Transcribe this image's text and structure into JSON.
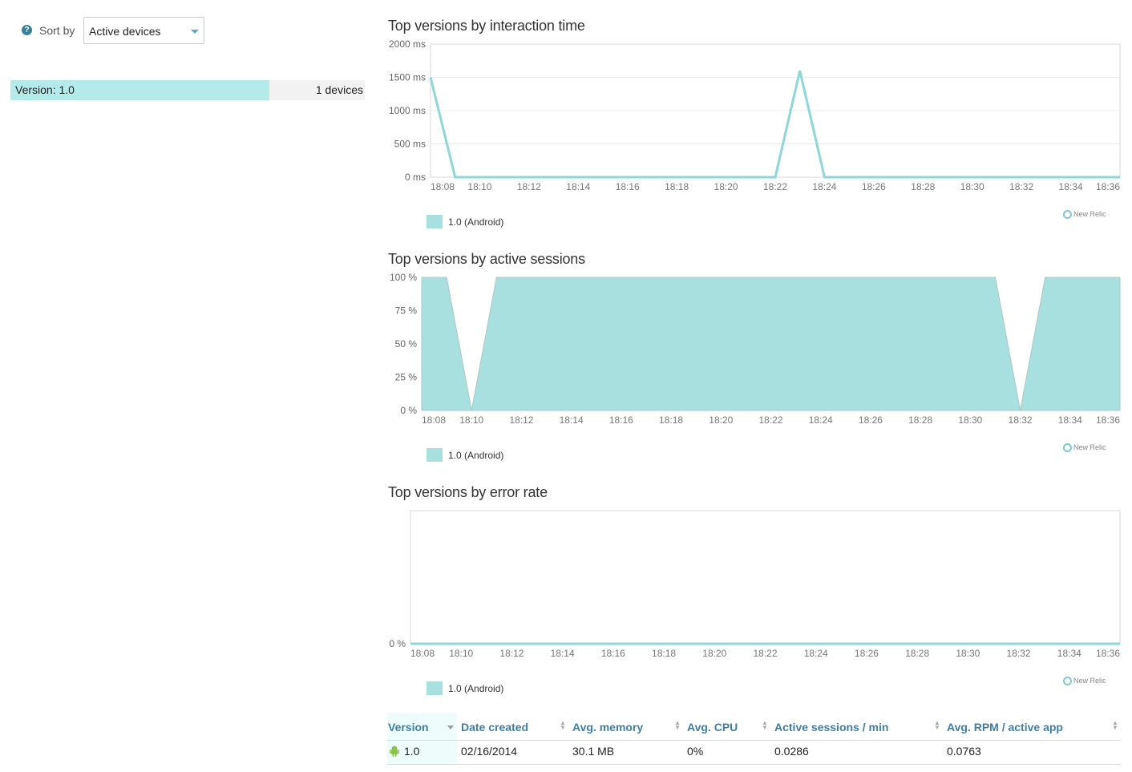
{
  "sidebar": {
    "help_icon": "question-circle-icon",
    "sort_label": "Sort by",
    "sort_value": "Active devices",
    "versions": [
      {
        "label": "Version: 1.0",
        "count": "1 devices",
        "fraction": 0.73
      }
    ]
  },
  "colors": {
    "series": "#a8e0e0",
    "series_line": "#8fd6d6",
    "link": "#3d7fa6"
  },
  "charts": {
    "interaction": {
      "title": "Top versions by interaction time",
      "legend": "1.0 (Android)",
      "brand": "New Relic"
    },
    "sessions": {
      "title": "Top versions by active sessions",
      "legend": "1.0 (Android)",
      "brand": "New Relic"
    },
    "errors": {
      "title": "Top versions by error rate",
      "legend": "1.0 (Android)",
      "brand": "New Relic"
    }
  },
  "chart_data": [
    {
      "type": "line",
      "title": "Top versions by interaction time",
      "y_ticks": [
        "0 ms",
        "500 ms",
        "1000 ms",
        "1500 ms",
        "2000 ms"
      ],
      "x_ticks": [
        "18:08",
        "18:10",
        "18:12",
        "18:14",
        "18:16",
        "18:18",
        "18:20",
        "18:22",
        "18:24",
        "18:26",
        "18:28",
        "18:30",
        "18:32",
        "18:34",
        "18:36"
      ],
      "xlim": [
        "18:08",
        "18:36"
      ],
      "ylim": [
        0,
        2000
      ],
      "series": [
        {
          "name": "1.0 (Android)",
          "x": [
            "18:08",
            "18:09",
            "18:22",
            "18:23",
            "18:24",
            "18:36"
          ],
          "values": [
            1500,
            0,
            0,
            1600,
            0,
            0
          ]
        }
      ],
      "legend": "bottom-left",
      "grid": true
    },
    {
      "type": "area",
      "title": "Top versions by active sessions",
      "y_ticks": [
        "0 %",
        "25 %",
        "50 %",
        "75 %",
        "100 %"
      ],
      "x_ticks": [
        "18:08",
        "18:10",
        "18:12",
        "18:14",
        "18:16",
        "18:18",
        "18:20",
        "18:22",
        "18:24",
        "18:26",
        "18:28",
        "18:30",
        "18:32",
        "18:34",
        "18:36"
      ],
      "xlim": [
        "18:08",
        "18:36"
      ],
      "ylim": [
        0,
        100
      ],
      "series": [
        {
          "name": "1.0 (Android)",
          "x": [
            "18:08",
            "18:09",
            "18:10",
            "18:11",
            "18:31",
            "18:32",
            "18:33",
            "18:36"
          ],
          "values": [
            100,
            100,
            0,
            100,
            100,
            0,
            100,
            100
          ]
        }
      ],
      "legend": "bottom-left",
      "grid": false
    },
    {
      "type": "line",
      "title": "Top versions by error rate",
      "y_ticks": [
        "0 %"
      ],
      "x_ticks": [
        "18:08",
        "18:10",
        "18:12",
        "18:14",
        "18:16",
        "18:18",
        "18:20",
        "18:22",
        "18:24",
        "18:26",
        "18:28",
        "18:30",
        "18:32",
        "18:34",
        "18:36"
      ],
      "xlim": [
        "18:08",
        "18:36"
      ],
      "series": [
        {
          "name": "1.0 (Android)",
          "x": [
            "18:08",
            "18:36"
          ],
          "values": [
            0,
            0
          ]
        }
      ],
      "legend": "bottom-left",
      "grid": false
    }
  ],
  "table": {
    "headers": [
      "Version",
      "Date created",
      "Avg. memory",
      "Avg. CPU",
      "Active sessions / min",
      "Avg. RPM / active app"
    ],
    "rows": [
      {
        "platform_icon": "android-icon",
        "version": "1.0",
        "date": "02/16/2014",
        "memory": "30.1 MB",
        "cpu": "0%",
        "sessions": "0.0286",
        "rpm": "0.0763"
      }
    ]
  }
}
